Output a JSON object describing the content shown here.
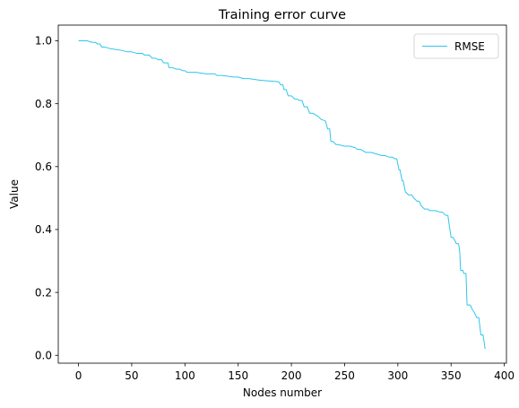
{
  "chart_data": {
    "type": "line",
    "title": "Training error curve",
    "xlabel": "Nodes number",
    "ylabel": "Value",
    "xlim": [
      -19,
      402
    ],
    "ylim": [
      -0.025,
      1.05
    ],
    "xticks": [
      0,
      50,
      100,
      150,
      200,
      250,
      300,
      350,
      400
    ],
    "yticks": [
      0.0,
      0.2,
      0.4,
      0.6,
      0.8,
      1.0
    ],
    "xtick_labels": [
      "0",
      "50",
      "100",
      "150",
      "200",
      "250",
      "300",
      "350",
      "400"
    ],
    "ytick_labels": [
      "0.0",
      "0.2",
      "0.4",
      "0.6",
      "0.8",
      "1.0"
    ],
    "grid": false,
    "legend": {
      "placement": "top-right",
      "entries": [
        "RMSE"
      ]
    },
    "colors": {
      "series": "#2ec6ec",
      "axes": "#000000",
      "background": "#ffffff"
    },
    "series": [
      {
        "name": "RMSE",
        "x": [
          0,
          8,
          13,
          16,
          18,
          20,
          22,
          25,
          30,
          40,
          46,
          50,
          55,
          60,
          62,
          66,
          68,
          69,
          72,
          75,
          78,
          80,
          84,
          85,
          88,
          92,
          95,
          98,
          100,
          102,
          110,
          120,
          128,
          130,
          135,
          145,
          150,
          155,
          160,
          170,
          180,
          188,
          190,
          192,
          193,
          195,
          197,
          200,
          203,
          205,
          208,
          210,
          212,
          215,
          217,
          220,
          225,
          228,
          232,
          234,
          236,
          237,
          239,
          242,
          244,
          250,
          255,
          260,
          262,
          265,
          270,
          275,
          280,
          285,
          288,
          292,
          295,
          297,
          299,
          301,
          302,
          304,
          305,
          307,
          310,
          313,
          315,
          318,
          320,
          322,
          325,
          328,
          330,
          335,
          340,
          342,
          345,
          347,
          348,
          350,
          352,
          355,
          357,
          358,
          359,
          361,
          362,
          364,
          365,
          368,
          370,
          372,
          374,
          376,
          378,
          380,
          382
        ],
        "y": [
          1.0,
          1.0,
          0.995,
          0.995,
          0.99,
          0.99,
          0.98,
          0.98,
          0.975,
          0.97,
          0.965,
          0.965,
          0.96,
          0.96,
          0.955,
          0.955,
          0.95,
          0.945,
          0.945,
          0.94,
          0.94,
          0.93,
          0.93,
          0.915,
          0.915,
          0.91,
          0.91,
          0.905,
          0.905,
          0.9,
          0.9,
          0.895,
          0.895,
          0.89,
          0.89,
          0.885,
          0.885,
          0.88,
          0.88,
          0.875,
          0.872,
          0.87,
          0.86,
          0.86,
          0.845,
          0.845,
          0.825,
          0.825,
          0.815,
          0.815,
          0.81,
          0.81,
          0.79,
          0.79,
          0.77,
          0.77,
          0.76,
          0.75,
          0.745,
          0.72,
          0.72,
          0.68,
          0.68,
          0.67,
          0.67,
          0.665,
          0.665,
          0.66,
          0.655,
          0.655,
          0.645,
          0.645,
          0.64,
          0.635,
          0.635,
          0.63,
          0.63,
          0.625,
          0.625,
          0.59,
          0.59,
          0.555,
          0.555,
          0.52,
          0.51,
          0.51,
          0.5,
          0.49,
          0.49,
          0.475,
          0.465,
          0.465,
          0.46,
          0.46,
          0.455,
          0.455,
          0.445,
          0.445,
          0.42,
          0.375,
          0.375,
          0.355,
          0.355,
          0.335,
          0.27,
          0.27,
          0.26,
          0.26,
          0.16,
          0.16,
          0.145,
          0.135,
          0.12,
          0.12,
          0.065,
          0.065,
          0.02
        ]
      }
    ]
  }
}
